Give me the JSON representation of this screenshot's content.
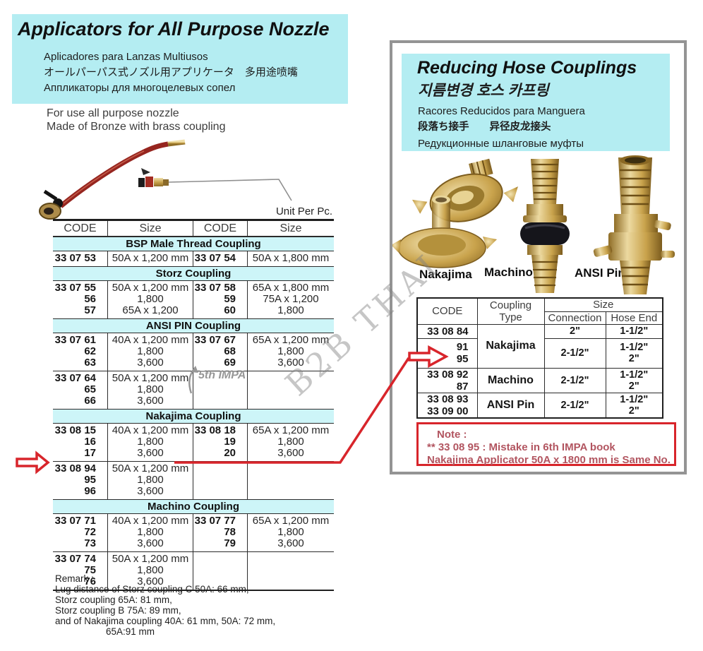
{
  "left": {
    "title": "Applicators for All Purpose Nozzle",
    "subtitles": [
      "Aplicadores para Lanzas Multiusos",
      "オールパーパス式ノズル用アプリケータ　多用途喷嘴",
      "Аппликаторы для многоцелевых сопел"
    ],
    "description": [
      "For use all purpose nozzle",
      "Made of Bronze with brass coupling"
    ],
    "unit_label": "Unit Per Pc.",
    "table": {
      "headers": [
        "CODE",
        "Size",
        "CODE",
        "Size"
      ],
      "sections": [
        {
          "name": "BSP Male Thread Coupling",
          "groups": [
            {
              "left_codes": [
                "33 07 53"
              ],
              "left_sizes": [
                "50A x 1,200 mm"
              ],
              "right_codes": [
                "33 07 54"
              ],
              "right_sizes": [
                "50A x 1,800 mm"
              ]
            }
          ]
        },
        {
          "name": "Storz Coupling",
          "groups": [
            {
              "left_codes": [
                "33 07 55",
                "56",
                "57"
              ],
              "left_sizes": [
                "50A x 1,200 mm",
                "1,800",
                "65A x 1,200"
              ],
              "right_codes": [
                "33 07 58",
                "59",
                "60"
              ],
              "right_sizes": [
                "65A x 1,800 mm",
                "75A x 1,200",
                "1,800"
              ]
            }
          ]
        },
        {
          "name": "ANSI PIN Coupling",
          "groups": [
            {
              "left_codes": [
                "33 07 61",
                "62",
                "63"
              ],
              "left_sizes": [
                "40A x 1,200 mm",
                "1,800",
                "3,600"
              ],
              "right_codes": [
                "33 07 67",
                "68",
                "69"
              ],
              "right_sizes": [
                "65A x 1,200 mm",
                "1,800",
                "3,600"
              ]
            },
            {
              "left_codes": [
                "33 07 64",
                "65",
                "66"
              ],
              "left_sizes": [
                "50A x 1,200 mm",
                "1,800",
                "3,600"
              ],
              "right_codes": [],
              "right_sizes": []
            }
          ]
        },
        {
          "name": "Nakajima Coupling",
          "groups": [
            {
              "left_codes": [
                "33 08 15",
                "16",
                "17"
              ],
              "left_sizes": [
                "40A x 1,200 mm",
                "1,800",
                "3,600"
              ],
              "right_codes": [
                "33 08 18",
                "19",
                "20"
              ],
              "right_sizes": [
                "65A x 1,200 mm",
                "1,800",
                "3,600"
              ]
            },
            {
              "left_codes": [
                "33 08 94",
                "95",
                "96"
              ],
              "left_sizes": [
                "50A x 1,200 mm",
                "1,800",
                "3,600"
              ],
              "right_codes": [],
              "right_sizes": []
            }
          ]
        },
        {
          "name": "Machino Coupling",
          "groups": [
            {
              "left_codes": [
                "33 07 71",
                "72",
                "73"
              ],
              "left_sizes": [
                "40A x 1,200 mm",
                "1,800",
                "3,600"
              ],
              "right_codes": [
                "33 07 77",
                "78",
                "79"
              ],
              "right_sizes": [
                "65A x 1,200 mm",
                "1,800",
                "3,600"
              ]
            },
            {
              "left_codes": [
                "33 07 74",
                "75",
                "76"
              ],
              "left_sizes": [
                "50A x 1,200 mm",
                "1,800",
                "3,600"
              ],
              "right_codes": [],
              "right_sizes": []
            }
          ]
        }
      ]
    },
    "remark": [
      "Remark :",
      "Lug distance of Storz coupling C 50A:  66 mm,",
      "Storz coupling 65A:  81 mm,",
      "Storz coupling B 75A:  89 mm,",
      "and of Nakajima coupling 40A:  61 mm, 50A:  72 mm,",
      "65A:91 mm"
    ]
  },
  "right": {
    "title": "Reducing Hose Couplings",
    "subtitles": [
      "지름변경 호스 카프링",
      "Racores Reducidos para Manguera",
      "段落ち接手　　异径皮龙接头",
      "Редукционные шланговые муфты"
    ],
    "product_labels": [
      "Nakajima",
      "Machino",
      "ANSI Pin"
    ],
    "table": {
      "header": {
        "code": "CODE",
        "type": "Coupling Type",
        "size": "Size",
        "connection": "Connection",
        "hose_end": "Hose End"
      },
      "rows": [
        {
          "codes": [
            "33 08 84"
          ],
          "type": "Nakajima",
          "type_rowspan": 2,
          "connection": "2\"",
          "hose_ends": [
            "1-1/2\""
          ]
        },
        {
          "codes": [
            "91",
            "95"
          ],
          "connection": "2-1/2\"",
          "hose_ends": [
            "1-1/2\"",
            "2\""
          ]
        },
        {
          "codes": [
            "33 08 92",
            "87"
          ],
          "type": "Machino",
          "type_rowspan": 1,
          "connection": "2-1/2\"",
          "hose_ends": [
            "1-1/2\"",
            "2\""
          ]
        },
        {
          "codes": [
            "33 08 93",
            "33 09 00"
          ],
          "type": "ANSI Pin",
          "type_rowspan": 1,
          "connection": "2-1/2\"",
          "hose_ends": [
            "1-1/2\"",
            "2\""
          ]
        }
      ]
    },
    "note": [
      "Note :",
      "** 33 08 95 : Mistake in 6th IMPA book",
      "Nakajima Applicator 50A x 1800 mm is Same No."
    ]
  },
  "annotations": {
    "impa_note": "5th IMPA",
    "watermark": "B2B THAI"
  },
  "colors": {
    "cyan_header": "#b4edf2",
    "cyan_band": "#cdf5f8",
    "red_accent": "#d8252b",
    "note_text": "#b25560",
    "border_gray": "#949494"
  }
}
